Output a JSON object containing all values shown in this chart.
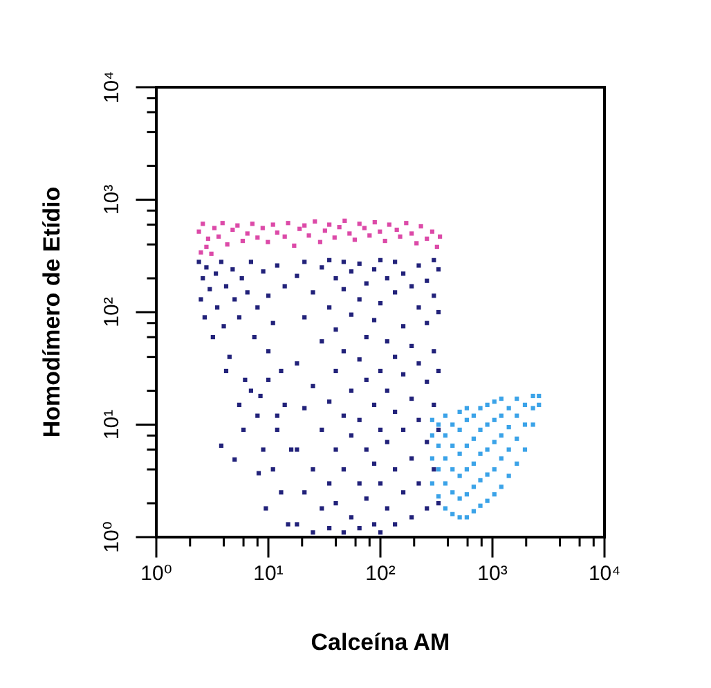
{
  "chart_data": {
    "type": "scatter",
    "xlabel": "Calceína AM",
    "ylabel": "Homodímero de Etídio",
    "log": "xy",
    "marker": "square",
    "xlim": [
      1,
      10000
    ],
    "ylim": [
      1,
      10000
    ],
    "xticks": [
      {
        "value": 1,
        "label": "10⁰"
      },
      {
        "value": 2,
        "label": null
      },
      {
        "value": 4,
        "label": null
      },
      {
        "value": 6,
        "label": null
      },
      {
        "value": 8,
        "label": null
      },
      {
        "value": 10,
        "label": "10¹"
      },
      {
        "value": 20,
        "label": null
      },
      {
        "value": 40,
        "label": null
      },
      {
        "value": 60,
        "label": null
      },
      {
        "value": 80,
        "label": null
      },
      {
        "value": 100,
        "label": "10²"
      },
      {
        "value": 200,
        "label": null
      },
      {
        "value": 400,
        "label": null
      },
      {
        "value": 600,
        "label": null
      },
      {
        "value": 800,
        "label": null
      },
      {
        "value": 1000,
        "label": "10³"
      },
      {
        "value": 2000,
        "label": null
      },
      {
        "value": 4000,
        "label": null
      },
      {
        "value": 6000,
        "label": null
      },
      {
        "value": 8000,
        "label": null
      },
      {
        "value": 10000,
        "label": "10⁴"
      }
    ],
    "yticks": [
      {
        "value": 1,
        "label": "10⁰"
      },
      {
        "value": 2,
        "label": null
      },
      {
        "value": 4,
        "label": null
      },
      {
        "value": 6,
        "label": null
      },
      {
        "value": 8,
        "label": null
      },
      {
        "value": 10,
        "label": "10¹"
      },
      {
        "value": 20,
        "label": null
      },
      {
        "value": 40,
        "label": null
      },
      {
        "value": 60,
        "label": null
      },
      {
        "value": 80,
        "label": null
      },
      {
        "value": 100,
        "label": "10²"
      },
      {
        "value": 200,
        "label": null
      },
      {
        "value": 400,
        "label": null
      },
      {
        "value": 600,
        "label": null
      },
      {
        "value": 800,
        "label": null
      },
      {
        "value": 1000,
        "label": "10³"
      },
      {
        "value": 2000,
        "label": null
      },
      {
        "value": 4000,
        "label": null
      },
      {
        "value": 6000,
        "label": null
      },
      {
        "value": 8000,
        "label": null
      },
      {
        "value": 10000,
        "label": "10⁴"
      }
    ],
    "series": [
      {
        "color": "#22227a",
        "x": [
          2.4,
          2.6,
          2.5,
          2.7,
          2.8,
          3,
          3.2,
          3.4,
          3.5,
          3.8,
          4,
          4.2,
          4.5,
          4.8,
          5,
          5.5,
          5.8,
          6.2,
          6.5,
          7,
          7.5,
          8,
          8.5,
          9,
          10,
          10,
          11,
          12,
          12,
          13,
          14,
          3.8,
          4.2,
          5,
          5.5,
          6,
          7,
          8,
          8.2,
          9,
          9.5,
          10,
          11,
          12,
          13,
          14,
          15,
          16,
          18,
          18,
          18,
          18,
          21,
          21,
          21,
          21,
          25,
          25,
          25,
          25,
          30,
          30,
          30,
          30,
          35,
          35,
          35,
          35,
          35,
          40,
          40,
          40,
          40,
          40,
          47,
          47,
          47,
          47,
          47,
          47,
          55,
          55,
          55,
          55,
          55,
          65,
          65,
          65,
          65,
          65,
          65,
          75,
          75,
          75,
          75,
          75,
          88,
          88,
          88,
          88,
          88,
          100,
          100,
          100,
          100,
          100,
          100,
          115,
          115,
          115,
          115,
          115,
          135,
          135,
          135,
          135,
          135,
          135,
          160,
          160,
          160,
          160,
          160,
          190,
          190,
          190,
          190,
          190,
          220,
          220,
          220,
          220,
          220,
          260,
          260,
          260,
          260,
          260,
          300,
          300,
          300,
          300,
          300,
          330,
          330,
          330,
          330,
          330
        ],
        "values": [
          280,
          200,
          130,
          90,
          250,
          160,
          60,
          220,
          110,
          280,
          75,
          170,
          40,
          240,
          130,
          90,
          200,
          25,
          150,
          280,
          60,
          110,
          18,
          230,
          45,
          140,
          80,
          12,
          260,
          30,
          170,
          6.5,
          30,
          4.9,
          15,
          9,
          20,
          12,
          3.7,
          6,
          1.8,
          25,
          4,
          9,
          2.5,
          15,
          1.3,
          6,
          1.3,
          6,
          35,
          210,
          2.5,
          14,
          90,
          280,
          1.1,
          4,
          22,
          150,
          1.8,
          9,
          55,
          250,
          1.2,
          3,
          16,
          110,
          290,
          2,
          6,
          30,
          70,
          200,
          1.1,
          4,
          12,
          45,
          160,
          280,
          1.5,
          8,
          20,
          95,
          230,
          1.2,
          3,
          11,
          38,
          130,
          270,
          2.2,
          6,
          25,
          60,
          180,
          1.3,
          4.5,
          15,
          85,
          240,
          1.1,
          3,
          9,
          30,
          120,
          290,
          1.8,
          7,
          20,
          55,
          200,
          1.3,
          4,
          13,
          40,
          150,
          280,
          2.5,
          9,
          28,
          75,
          220,
          1.5,
          5,
          17,
          50,
          170,
          3,
          11,
          35,
          110,
          260,
          1.8,
          7,
          24,
          80,
          190,
          4,
          15,
          45,
          140,
          290,
          2,
          9,
          30,
          100,
          240
        ]
      },
      {
        "color": "#dc4aa8",
        "x": [
          2.4,
          2.5,
          2.6,
          2.8,
          2.9,
          3.1,
          3.3,
          3.6,
          3.9,
          4.3,
          4.8,
          5.3,
          5.9,
          6.5,
          7.2,
          8,
          8.9,
          9.9,
          11,
          12,
          14,
          15,
          17,
          19,
          21,
          23,
          26,
          29,
          32,
          35,
          39,
          43,
          48,
          53,
          59,
          65,
          72,
          80,
          89,
          99,
          110,
          120,
          140,
          150,
          170,
          190,
          210,
          230,
          260,
          290,
          320,
          340
        ],
        "values": [
          520,
          340,
          610,
          380,
          450,
          330,
          560,
          470,
          620,
          400,
          540,
          590,
          430,
          500,
          610,
          460,
          560,
          420,
          600,
          510,
          470,
          620,
          390,
          550,
          590,
          480,
          640,
          420,
          530,
          600,
          460,
          570,
          650,
          500,
          440,
          610,
          560,
          480,
          630,
          520,
          430,
          600,
          540,
          470,
          620,
          500,
          410,
          580,
          450,
          520,
          380,
          470
        ]
      },
      {
        "color": "#3ba3e8",
        "x": [
          290,
          290,
          290,
          290,
          330,
          330,
          330,
          330,
          380,
          380,
          380,
          380,
          380,
          440,
          440,
          440,
          440,
          440,
          510,
          510,
          510,
          510,
          510,
          510,
          590,
          590,
          590,
          590,
          590,
          590,
          680,
          680,
          680,
          680,
          680,
          780,
          780,
          780,
          780,
          780,
          900,
          900,
          900,
          900,
          900,
          1040,
          1040,
          1040,
          1040,
          1040,
          1200,
          1200,
          1200,
          1200,
          1200,
          1400,
          1400,
          1400,
          1400,
          1650,
          1650,
          1650,
          1650,
          1950,
          1950,
          1950,
          2300,
          2300,
          2300,
          2600,
          2600
        ],
        "values": [
          3,
          5,
          8,
          11,
          2.3,
          4,
          6.5,
          10,
          1.8,
          3,
          5,
          8,
          12,
          1.6,
          2.5,
          4,
          6.5,
          10,
          1.5,
          2.2,
          3.5,
          5.5,
          9,
          13,
          1.5,
          2.4,
          4,
          6.5,
          11,
          14,
          1.7,
          2.8,
          4.5,
          7.5,
          12,
          1.9,
          3.2,
          5.5,
          9,
          14,
          2.1,
          3.6,
          6,
          10,
          15,
          2.4,
          4,
          7,
          11,
          16,
          2.8,
          5,
          8,
          12,
          17,
          3.5,
          6,
          9.5,
          14,
          4.5,
          7.5,
          12,
          17,
          6,
          10,
          15,
          10,
          14,
          18,
          15,
          18
        ]
      }
    ]
  }
}
